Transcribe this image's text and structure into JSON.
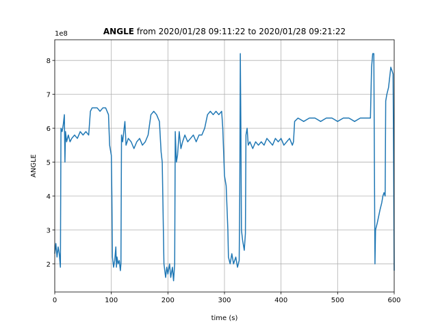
{
  "chart_data": {
    "type": "line",
    "title": {
      "variable": "ANGLE",
      "range": "from 2020/01/28 09:11:22 to 2020/01/28 09:21:22"
    },
    "xlabel": "time (s)",
    "ylabel": "ANGLE",
    "y_offset_label": "1e8",
    "x": [
      0,
      2,
      4,
      6,
      8,
      10,
      11,
      13,
      15,
      17,
      18,
      19,
      21,
      24,
      27,
      30,
      35,
      40,
      45,
      50,
      55,
      60,
      63,
      66,
      70,
      75,
      80,
      85,
      90,
      95,
      97,
      100,
      101,
      102,
      104,
      106,
      108,
      109,
      110,
      112,
      114,
      116,
      117,
      118,
      120,
      122,
      124,
      126,
      130,
      135,
      140,
      145,
      150,
      155,
      160,
      165,
      170,
      175,
      180,
      185,
      188,
      190,
      192,
      193,
      196,
      198,
      200,
      203,
      205,
      208,
      210,
      212,
      213,
      215,
      217,
      220,
      223,
      226,
      230,
      235,
      240,
      245,
      250,
      255,
      260,
      265,
      270,
      275,
      280,
      285,
      290,
      295,
      297,
      300,
      303,
      306,
      307,
      310,
      313,
      316,
      320,
      323,
      326,
      327,
      328,
      329,
      330,
      332,
      335,
      337,
      338,
      340,
      342,
      345,
      350,
      355,
      360,
      365,
      370,
      375,
      380,
      385,
      390,
      395,
      400,
      405,
      410,
      415,
      420,
      422,
      424,
      430,
      440,
      450,
      460,
      470,
      480,
      490,
      500,
      510,
      520,
      530,
      540,
      550,
      558,
      560,
      562,
      564,
      565,
      566,
      567,
      570,
      575,
      578,
      580,
      582,
      584,
      585,
      587,
      590,
      592,
      594,
      596,
      598,
      599,
      600
    ],
    "series": [
      {
        "name": "ANGLE",
        "color": "#1f77b4",
        "values": [
          2.3,
          2.6,
          2.2,
          2.5,
          2.3,
          1.9,
          6.0,
          5.9,
          6.1,
          6.4,
          5.0,
          5.9,
          5.6,
          5.8,
          5.6,
          5.7,
          5.8,
          5.7,
          5.9,
          5.8,
          5.9,
          5.8,
          6.5,
          6.6,
          6.6,
          6.6,
          6.5,
          6.6,
          6.6,
          6.4,
          5.5,
          5.2,
          4.0,
          2.2,
          1.9,
          2.1,
          2.5,
          1.9,
          2.2,
          2.0,
          2.1,
          1.8,
          2.0,
          5.8,
          5.6,
          5.9,
          6.2,
          5.5,
          5.7,
          5.6,
          5.4,
          5.6,
          5.7,
          5.5,
          5.6,
          5.8,
          6.4,
          6.5,
          6.4,
          6.2,
          5.3,
          5.0,
          3.0,
          2.0,
          1.6,
          1.9,
          1.7,
          2.0,
          1.6,
          1.9,
          1.5,
          2.0,
          5.9,
          5.0,
          5.2,
          5.9,
          5.4,
          5.6,
          5.8,
          5.6,
          5.7,
          5.8,
          5.6,
          5.8,
          5.8,
          6.0,
          6.4,
          6.5,
          6.4,
          6.5,
          6.4,
          6.5,
          6.0,
          4.6,
          4.3,
          3.0,
          2.2,
          2.0,
          2.3,
          2.0,
          2.2,
          1.9,
          2.1,
          4.0,
          8.2,
          6.0,
          3.0,
          2.7,
          2.4,
          2.9,
          5.8,
          6.0,
          5.5,
          5.6,
          5.4,
          5.6,
          5.5,
          5.6,
          5.5,
          5.7,
          5.6,
          5.5,
          5.7,
          5.6,
          5.7,
          5.5,
          5.6,
          5.7,
          5.5,
          5.6,
          6.2,
          6.3,
          6.2,
          6.3,
          6.3,
          6.2,
          6.3,
          6.3,
          6.2,
          6.3,
          6.3,
          6.2,
          6.3,
          6.3,
          6.3,
          7.8,
          8.2,
          8.2,
          5.0,
          2.0,
          3.0,
          3.2,
          3.6,
          3.8,
          4.0,
          4.1,
          4.0,
          6.8,
          7.0,
          7.2,
          7.5,
          7.8,
          7.7,
          7.6,
          5.0,
          1.8
        ]
      }
    ],
    "xlim": [
      0,
      600
    ],
    "xticks": [
      0,
      100,
      200,
      300,
      400,
      500,
      600
    ],
    "ylim": [
      1.17,
      8.61
    ],
    "yticks": [
      2,
      3,
      4,
      5,
      6,
      7,
      8
    ],
    "grid": true
  }
}
